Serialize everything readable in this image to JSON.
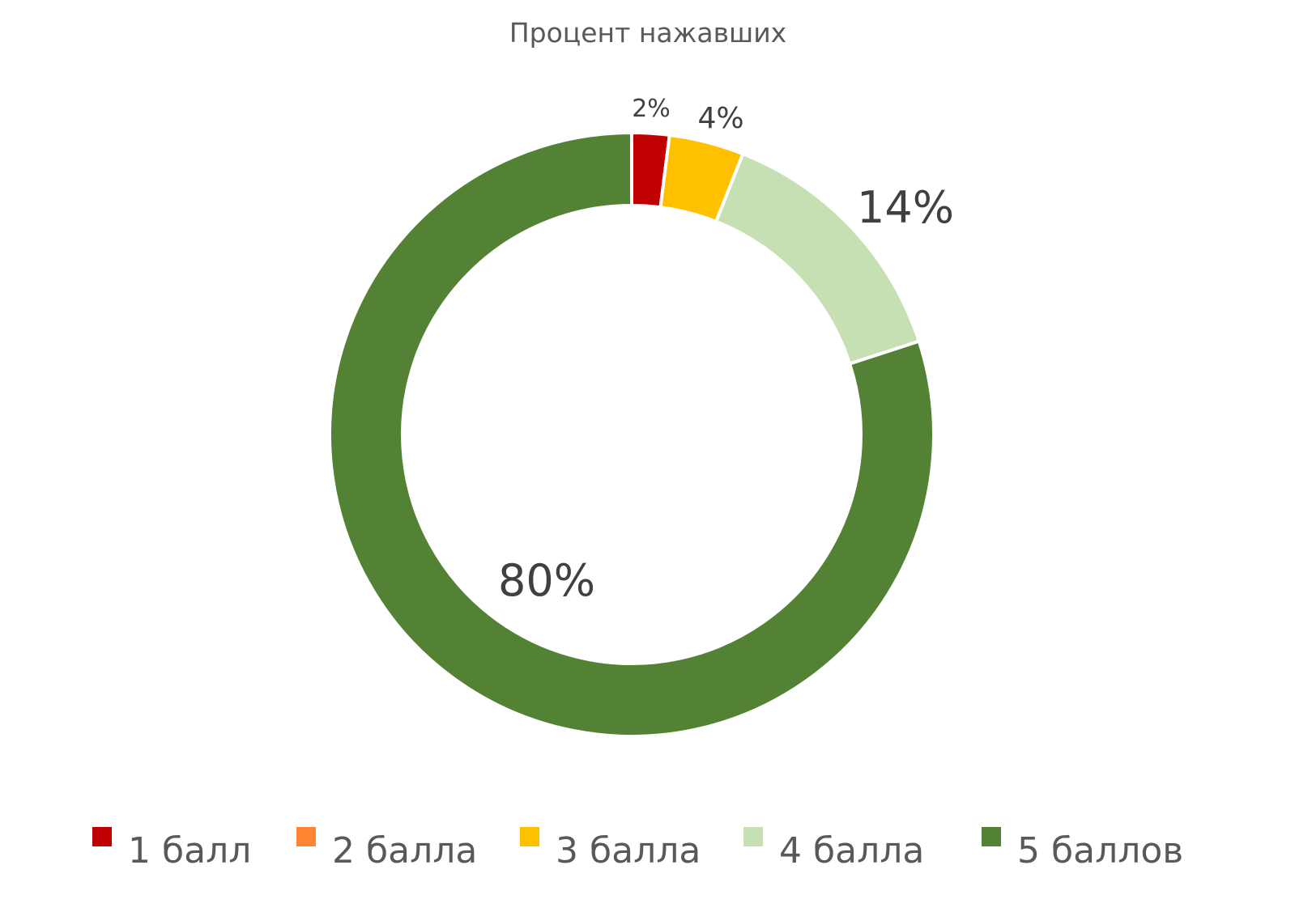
{
  "chart_data": {
    "type": "pie",
    "subtype": "donut",
    "title": "Процент нажавших",
    "categories": [
      "1 балл",
      "2 балла",
      "3 балла",
      "4 балла",
      "5 баллов"
    ],
    "values": [
      2,
      0,
      4,
      14,
      80
    ],
    "data_labels": [
      "2%",
      "",
      "4%",
      "14%",
      "80%"
    ],
    "unit": "%",
    "colors": [
      "#C00000",
      "#FF8533",
      "#FFC000",
      "#C6E0B4",
      "#548235"
    ],
    "slice_border_color": "#FFFFFF",
    "start_angle_deg": 0,
    "direction": "clockwise",
    "legend": {
      "position": "bottom",
      "items": [
        "1 балл",
        "2 балла",
        "3 балла",
        "4 балла",
        "5 баллов"
      ]
    }
  }
}
